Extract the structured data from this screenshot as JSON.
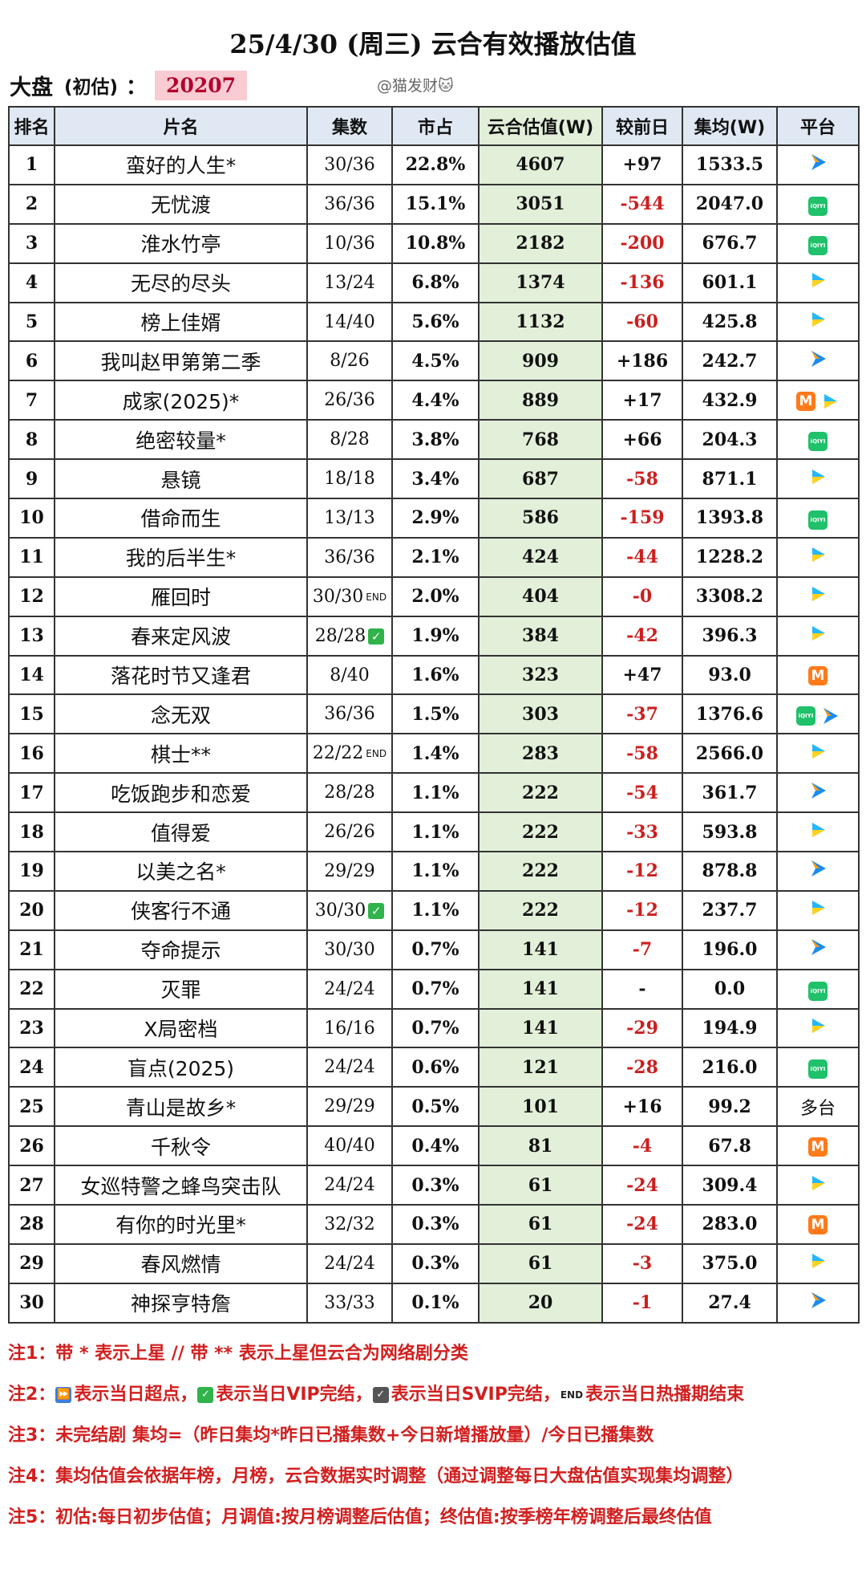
{
  "title": "25/4/30 (周三) 云合有效播放估值",
  "summary": {
    "label": "大盘",
    "paren": "(初估)",
    "colon": "：",
    "value": "20207",
    "watermark": "@猫发财🐱"
  },
  "headers": [
    "排名",
    "片名",
    "集数",
    "市占",
    "云合估值(W)",
    "较前日",
    "集均(W)",
    "平台"
  ],
  "rows": [
    {
      "rank": "1",
      "name": "蛮好的人生*",
      "ep": "30/36",
      "ep_mark": "",
      "share": "22.8%",
      "est": "4607",
      "delta": "+97",
      "avg": "1533.5",
      "platforms": [
        "tencent-video-blue"
      ]
    },
    {
      "rank": "2",
      "name": "无忧渡",
      "ep": "36/36",
      "ep_mark": "",
      "share": "15.1%",
      "est": "3051",
      "delta": "-544",
      "avg": "2047.0",
      "platforms": [
        "iqiyi"
      ]
    },
    {
      "rank": "3",
      "name": "淮水竹亭",
      "ep": "10/36",
      "ep_mark": "",
      "share": "10.8%",
      "est": "2182",
      "delta": "-200",
      "avg": "676.7",
      "platforms": [
        "iqiyi"
      ]
    },
    {
      "rank": "4",
      "name": "无尽的尽头",
      "ep": "13/24",
      "ep_mark": "",
      "share": "6.8%",
      "est": "1374",
      "delta": "-136",
      "avg": "601.1",
      "platforms": [
        "youku"
      ]
    },
    {
      "rank": "5",
      "name": "榜上佳婿",
      "ep": "14/40",
      "ep_mark": "",
      "share": "5.6%",
      "est": "1132",
      "delta": "-60",
      "avg": "425.8",
      "platforms": [
        "youku"
      ]
    },
    {
      "rank": "6",
      "name": "我叫赵甲第第二季",
      "ep": "8/26",
      "ep_mark": "",
      "share": "4.5%",
      "est": "909",
      "delta": "+186",
      "avg": "242.7",
      "platforms": [
        "tencent-video-blue"
      ]
    },
    {
      "rank": "7",
      "name": "成家(2025)*",
      "ep": "26/36",
      "ep_mark": "",
      "share": "4.4%",
      "est": "889",
      "delta": "+17",
      "avg": "432.9",
      "platforms": [
        "mango",
        "youku"
      ]
    },
    {
      "rank": "8",
      "name": "绝密较量*",
      "ep": "8/28",
      "ep_mark": "",
      "share": "3.8%",
      "est": "768",
      "delta": "+66",
      "avg": "204.3",
      "platforms": [
        "iqiyi"
      ]
    },
    {
      "rank": "9",
      "name": "悬镜",
      "ep": "18/18",
      "ep_mark": "",
      "share": "3.4%",
      "est": "687",
      "delta": "-58",
      "avg": "871.1",
      "platforms": [
        "youku"
      ]
    },
    {
      "rank": "10",
      "name": "借命而生",
      "ep": "13/13",
      "ep_mark": "",
      "share": "2.9%",
      "est": "586",
      "delta": "-159",
      "avg": "1393.8",
      "platforms": [
        "iqiyi"
      ]
    },
    {
      "rank": "11",
      "name": "我的后半生*",
      "ep": "36/36",
      "ep_mark": "",
      "share": "2.1%",
      "est": "424",
      "delta": "-44",
      "avg": "1228.2",
      "platforms": [
        "youku"
      ]
    },
    {
      "rank": "12",
      "name": "雁回时",
      "ep": "30/30",
      "ep_mark": "end",
      "share": "2.0%",
      "est": "404",
      "delta": "-0",
      "avg": "3308.2",
      "platforms": [
        "youku"
      ]
    },
    {
      "rank": "13",
      "name": "春来定风波",
      "ep": "28/28",
      "ep_mark": "check",
      "share": "1.9%",
      "est": "384",
      "delta": "-42",
      "avg": "396.3",
      "platforms": [
        "youku"
      ]
    },
    {
      "rank": "14",
      "name": "落花时节又逢君",
      "ep": "8/40",
      "ep_mark": "",
      "share": "1.6%",
      "est": "323",
      "delta": "+47",
      "avg": "93.0",
      "platforms": [
        "mango"
      ]
    },
    {
      "rank": "15",
      "name": "念无双",
      "ep": "36/36",
      "ep_mark": "",
      "share": "1.5%",
      "est": "303",
      "delta": "-37",
      "avg": "1376.6",
      "platforms": [
        "iqiyi",
        "tencent-video-blue"
      ]
    },
    {
      "rank": "16",
      "name": "棋士**",
      "ep": "22/22",
      "ep_mark": "end",
      "share": "1.4%",
      "est": "283",
      "delta": "-58",
      "avg": "2566.0",
      "platforms": [
        "youku"
      ]
    },
    {
      "rank": "17",
      "name": "吃饭跑步和恋爱",
      "ep": "28/28",
      "ep_mark": "",
      "share": "1.1%",
      "est": "222",
      "delta": "-54",
      "avg": "361.7",
      "platforms": [
        "tencent-video-blue"
      ]
    },
    {
      "rank": "18",
      "name": "值得爱",
      "ep": "26/26",
      "ep_mark": "",
      "share": "1.1%",
      "est": "222",
      "delta": "-33",
      "avg": "593.8",
      "platforms": [
        "youku"
      ]
    },
    {
      "rank": "19",
      "name": "以美之名*",
      "ep": "29/29",
      "ep_mark": "",
      "share": "1.1%",
      "est": "222",
      "delta": "-12",
      "avg": "878.8",
      "platforms": [
        "tencent-video-blue"
      ]
    },
    {
      "rank": "20",
      "name": "侠客行不通",
      "ep": "30/30",
      "ep_mark": "check",
      "share": "1.1%",
      "est": "222",
      "delta": "-12",
      "avg": "237.7",
      "platforms": [
        "youku"
      ]
    },
    {
      "rank": "21",
      "name": "夺命提示",
      "ep": "30/30",
      "ep_mark": "",
      "share": "0.7%",
      "est": "141",
      "delta": "-7",
      "avg": "196.0",
      "platforms": [
        "tencent-video-blue"
      ]
    },
    {
      "rank": "22",
      "name": "灭罪",
      "ep": "24/24",
      "ep_mark": "",
      "share": "0.7%",
      "est": "141",
      "delta": "-",
      "avg": "0.0",
      "platforms": [
        "iqiyi"
      ]
    },
    {
      "rank": "23",
      "name": "X局密档",
      "ep": "16/16",
      "ep_mark": "",
      "share": "0.7%",
      "est": "141",
      "delta": "-29",
      "avg": "194.9",
      "platforms": [
        "youku"
      ]
    },
    {
      "rank": "24",
      "name": "盲点(2025)",
      "ep": "24/24",
      "ep_mark": "",
      "share": "0.6%",
      "est": "121",
      "delta": "-28",
      "avg": "216.0",
      "platforms": [
        "iqiyi"
      ]
    },
    {
      "rank": "25",
      "name": "青山是故乡*",
      "ep": "29/29",
      "ep_mark": "",
      "share": "0.5%",
      "est": "101",
      "delta": "+16",
      "avg": "99.2",
      "platforms": [
        "multi"
      ]
    },
    {
      "rank": "26",
      "name": "千秋令",
      "ep": "40/40",
      "ep_mark": "",
      "share": "0.4%",
      "est": "81",
      "delta": "-4",
      "avg": "67.8",
      "platforms": [
        "mango"
      ]
    },
    {
      "rank": "27",
      "name": "女巡特警之蜂鸟突击队",
      "ep": "24/24",
      "ep_mark": "",
      "share": "0.3%",
      "est": "61",
      "delta": "-24",
      "avg": "309.4",
      "platforms": [
        "youku"
      ]
    },
    {
      "rank": "28",
      "name": "有你的时光里*",
      "ep": "32/32",
      "ep_mark": "",
      "share": "0.3%",
      "est": "61",
      "delta": "-24",
      "avg": "283.0",
      "platforms": [
        "mango"
      ]
    },
    {
      "rank": "29",
      "name": "春风燃情",
      "ep": "24/24",
      "ep_mark": "",
      "share": "0.3%",
      "est": "61",
      "delta": "-3",
      "avg": "375.0",
      "platforms": [
        "youku"
      ]
    },
    {
      "rank": "30",
      "name": "神探亨特詹",
      "ep": "33/33",
      "ep_mark": "",
      "share": "0.1%",
      "est": "20",
      "delta": "-1",
      "avg": "27.4",
      "platforms": [
        "tencent-video-blue"
      ]
    }
  ],
  "platform_labels": {
    "iqiyi": "iQIYI",
    "mango": "M",
    "multi": "多台"
  },
  "ep_end_label": "END",
  "ep_check_glyph": "✓",
  "notes": {
    "n1": "注1：带 * 表示上星 // 带 ** 表示上星但云合为网络剧分类",
    "n2_prefix": "注2：",
    "n2_a": "表示当日超点，",
    "n2_b": "表示当日VIP完结，",
    "n2_c": "表示当日SVIP完结，",
    "n2_d": "表示当日热播期结束",
    "n2_icon_a": "⏩",
    "n2_icon_b": "✓",
    "n2_icon_c": "✓",
    "n2_icon_d": "END",
    "n3": "注3：未完结剧 集均=（昨日集均*昨日已播集数+今日新增播放量）/今日已播集数",
    "n4": "注4：集均估值会依据年榜，月榜，云合数据实时调整（通过调整每日大盘估值实现集均调整）",
    "n5": "注5：初估:每日初步估值；月调值:按月榜调整后估值；终估值:按季榜年榜调整后最终估值"
  },
  "colors": {
    "header_bg": "#dfe8f3",
    "est_bg": "#e2efd9",
    "negative": "#cc1f1f",
    "notes": "#d21f1f",
    "highlight": "#f9cbd3"
  }
}
